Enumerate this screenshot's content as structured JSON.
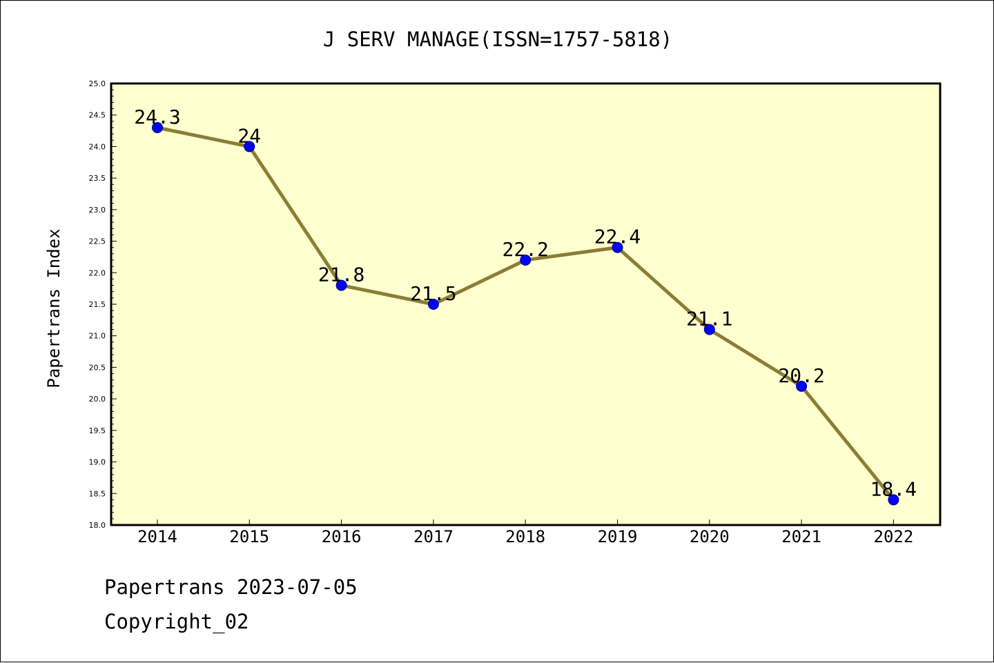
{
  "chart_data": {
    "type": "line",
    "title": "J SERV MANAGE(ISSN=1757-5818)",
    "xlabel": "",
    "ylabel": "Papertrans Index",
    "categories": [
      "2014",
      "2015",
      "2016",
      "2017",
      "2018",
      "2019",
      "2020",
      "2021",
      "2022"
    ],
    "series": [
      {
        "values": [
          24.3,
          24.0,
          21.8,
          21.5,
          22.2,
          22.4,
          21.1,
          20.2,
          18.4
        ]
      }
    ],
    "data_labels": [
      "24.3",
      "24",
      "21.8",
      "21.5",
      "22.2",
      "22.4",
      "21.1",
      "20.2",
      "18.4"
    ],
    "ylim": [
      18.0,
      25.0
    ],
    "yticks": [
      "18.0",
      "18.5",
      "19.0",
      "19.5",
      "20.0",
      "20.5",
      "21.0",
      "21.5",
      "22.0",
      "22.5",
      "23.0",
      "23.5",
      "24.0",
      "24.5",
      "25.0"
    ],
    "grid": false,
    "colors": {
      "plot_background": "#ffffd0",
      "line": "#8b7d35",
      "marker": "#0000ff",
      "axes": "#000000"
    }
  },
  "footer": {
    "line1": "Papertrans 2023-07-05",
    "line2": "Copyright_02"
  }
}
